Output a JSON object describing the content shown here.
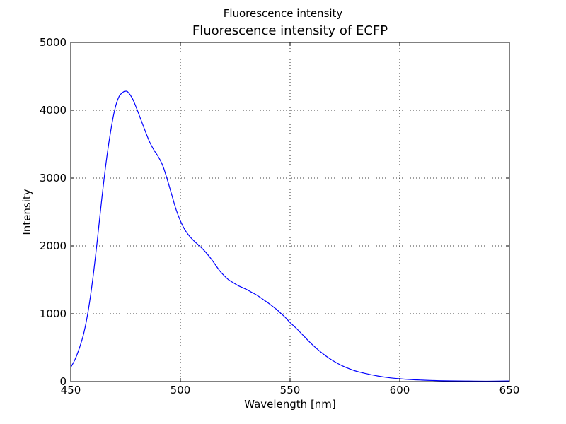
{
  "window_title": "Fluorescence intensity",
  "chart_data": {
    "type": "line",
    "title": "Fluorescence intensity of ECFP",
    "xlabel": "Wavelength [nm]",
    "ylabel": "Intensity",
    "xlim": [
      450,
      650
    ],
    "ylim": [
      0,
      5000
    ],
    "xticks": [
      450,
      500,
      550,
      600,
      650
    ],
    "yticks": [
      0,
      1000,
      2000,
      3000,
      4000,
      5000
    ],
    "grid": true,
    "line_color": "#0000ff",
    "x": [
      450,
      452,
      454,
      456,
      458,
      460,
      462,
      464,
      466,
      468,
      470,
      472,
      474,
      475,
      476,
      478,
      480,
      482,
      484,
      486,
      488,
      490,
      492,
      494,
      496,
      498,
      500,
      502,
      504,
      506,
      508,
      510,
      512,
      514,
      516,
      518,
      520,
      522,
      524,
      526,
      528,
      530,
      532,
      534,
      536,
      538,
      540,
      542,
      544,
      546,
      548,
      550,
      553,
      556,
      559,
      562,
      565,
      568,
      571,
      574,
      577,
      580,
      585,
      590,
      595,
      600,
      605,
      610,
      615,
      620,
      630,
      640,
      650
    ],
    "values": [
      210,
      330,
      500,
      720,
      1050,
      1500,
      2050,
      2650,
      3200,
      3650,
      4000,
      4200,
      4270,
      4280,
      4270,
      4180,
      4030,
      3860,
      3690,
      3530,
      3410,
      3310,
      3180,
      2980,
      2760,
      2540,
      2370,
      2240,
      2150,
      2080,
      2020,
      1960,
      1890,
      1810,
      1720,
      1630,
      1560,
      1500,
      1460,
      1420,
      1390,
      1360,
      1325,
      1290,
      1250,
      1205,
      1160,
      1110,
      1060,
      1000,
      940,
      870,
      780,
      680,
      580,
      490,
      410,
      340,
      280,
      230,
      190,
      155,
      115,
      82,
      58,
      42,
      30,
      22,
      16,
      12,
      8,
      6,
      10
    ]
  }
}
